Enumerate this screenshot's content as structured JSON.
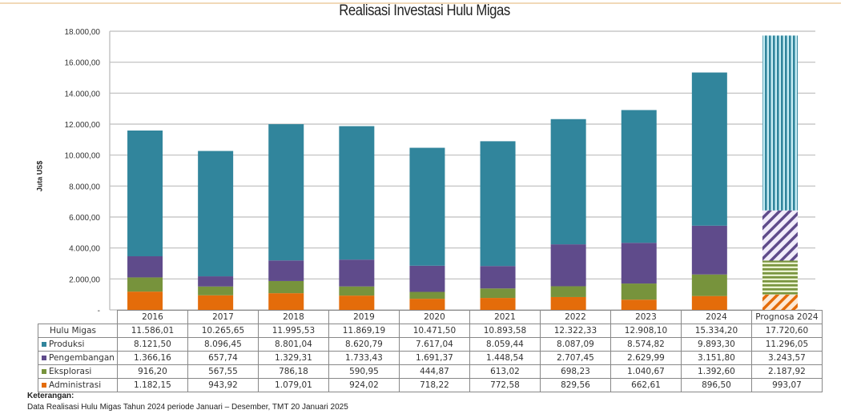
{
  "chart_data": {
    "type": "bar",
    "stacked": true,
    "title": "Realisasi Investasi Hulu Migas",
    "xlabel": "",
    "ylabel": "Juta US$",
    "ylim": [
      0,
      18000
    ],
    "yticks": [
      "-",
      "2.000,00",
      "4.000,00",
      "6.000,00",
      "8.000,00",
      "10.000,00",
      "12.000,00",
      "14.000,00",
      "16.000,00",
      "18.000,00"
    ],
    "ytick_values": [
      0,
      2000,
      4000,
      6000,
      8000,
      10000,
      12000,
      14000,
      16000,
      18000
    ],
    "grid": true,
    "categories": [
      "2016",
      "2017",
      "2018",
      "2019",
      "2020",
      "2021",
      "2022",
      "2023",
      "2024",
      "Prognosa 2024"
    ],
    "patterned_categories": [
      "Prognosa 2024"
    ],
    "series": [
      {
        "name": "Administrasi",
        "color": "#e46c0a",
        "values": [
          1182.15,
          943.92,
          1079.01,
          924.02,
          718.22,
          772.58,
          829.56,
          662.61,
          896.5,
          993.07
        ]
      },
      {
        "name": "Eksplorasi",
        "color": "#77933c",
        "values": [
          916.2,
          567.55,
          786.18,
          590.95,
          444.87,
          613.02,
          698.23,
          1040.67,
          1392.6,
          2187.92
        ]
      },
      {
        "name": "Pengembangan",
        "color": "#5f4b8b",
        "values": [
          1366.16,
          657.74,
          1329.31,
          1733.43,
          1691.37,
          1448.54,
          2707.45,
          2629.99,
          3151.8,
          3243.57
        ]
      },
      {
        "name": "Produksi",
        "color": "#31859c",
        "values": [
          8121.5,
          8096.45,
          8801.04,
          8620.79,
          7617.04,
          8059.44,
          8087.09,
          8574.82,
          9893.3,
          11296.05
        ]
      }
    ],
    "totals_label": "Hulu Migas",
    "totals": [
      11586.01,
      10265.65,
      11995.53,
      11869.19,
      10471.5,
      10893.58,
      12322.33,
      12908.1,
      15334.2,
      17720.6
    ],
    "legend": "data-table-below"
  },
  "table": {
    "header": [
      "2016",
      "2017",
      "2018",
      "2019",
      "2020",
      "2021",
      "2022",
      "2023",
      "2024",
      "Prognosa 2024"
    ],
    "rows": [
      {
        "label": "Hulu Migas",
        "swatch": "",
        "cells": [
          "11.586,01",
          "10.265,65",
          "11.995,53",
          "11.869,19",
          "10.471,50",
          "10.893,58",
          "12.322,33",
          "12.908,10",
          "15.334,20",
          "17.720,60"
        ]
      },
      {
        "label": "Produksi",
        "swatch": "#31859c",
        "cells": [
          "8.121,50",
          "8.096,45",
          "8.801,04",
          "8.620,79",
          "7.617,04",
          "8.059,44",
          "8.087,09",
          "8.574,82",
          "9.893,30",
          "11.296,05"
        ]
      },
      {
        "label": "Pengembangan",
        "swatch": "#5f4b8b",
        "cells": [
          "1.366,16",
          "657,74",
          "1.329,31",
          "1.733,43",
          "1.691,37",
          "1.448,54",
          "2.707,45",
          "2.629,99",
          "3.151,80",
          "3.243,57"
        ]
      },
      {
        "label": "Eksplorasi",
        "swatch": "#77933c",
        "cells": [
          "916,20",
          "567,55",
          "786,18",
          "590,95",
          "444,87",
          "613,02",
          "698,23",
          "1.040,67",
          "1.392,60",
          "2.187,92"
        ]
      },
      {
        "label": "Administrasi",
        "swatch": "#e46c0a",
        "cells": [
          "1.182,15",
          "943,92",
          "1.079,01",
          "924,02",
          "718,22",
          "772,58",
          "829,56",
          "662,61",
          "896,50",
          "993,07"
        ]
      }
    ]
  },
  "notes": {
    "heading": "Keterangan:",
    "text": "Data Realisasi Hulu Migas Tahun 2024 periode Januari – Desember, TMT 20 Januari 2025"
  }
}
